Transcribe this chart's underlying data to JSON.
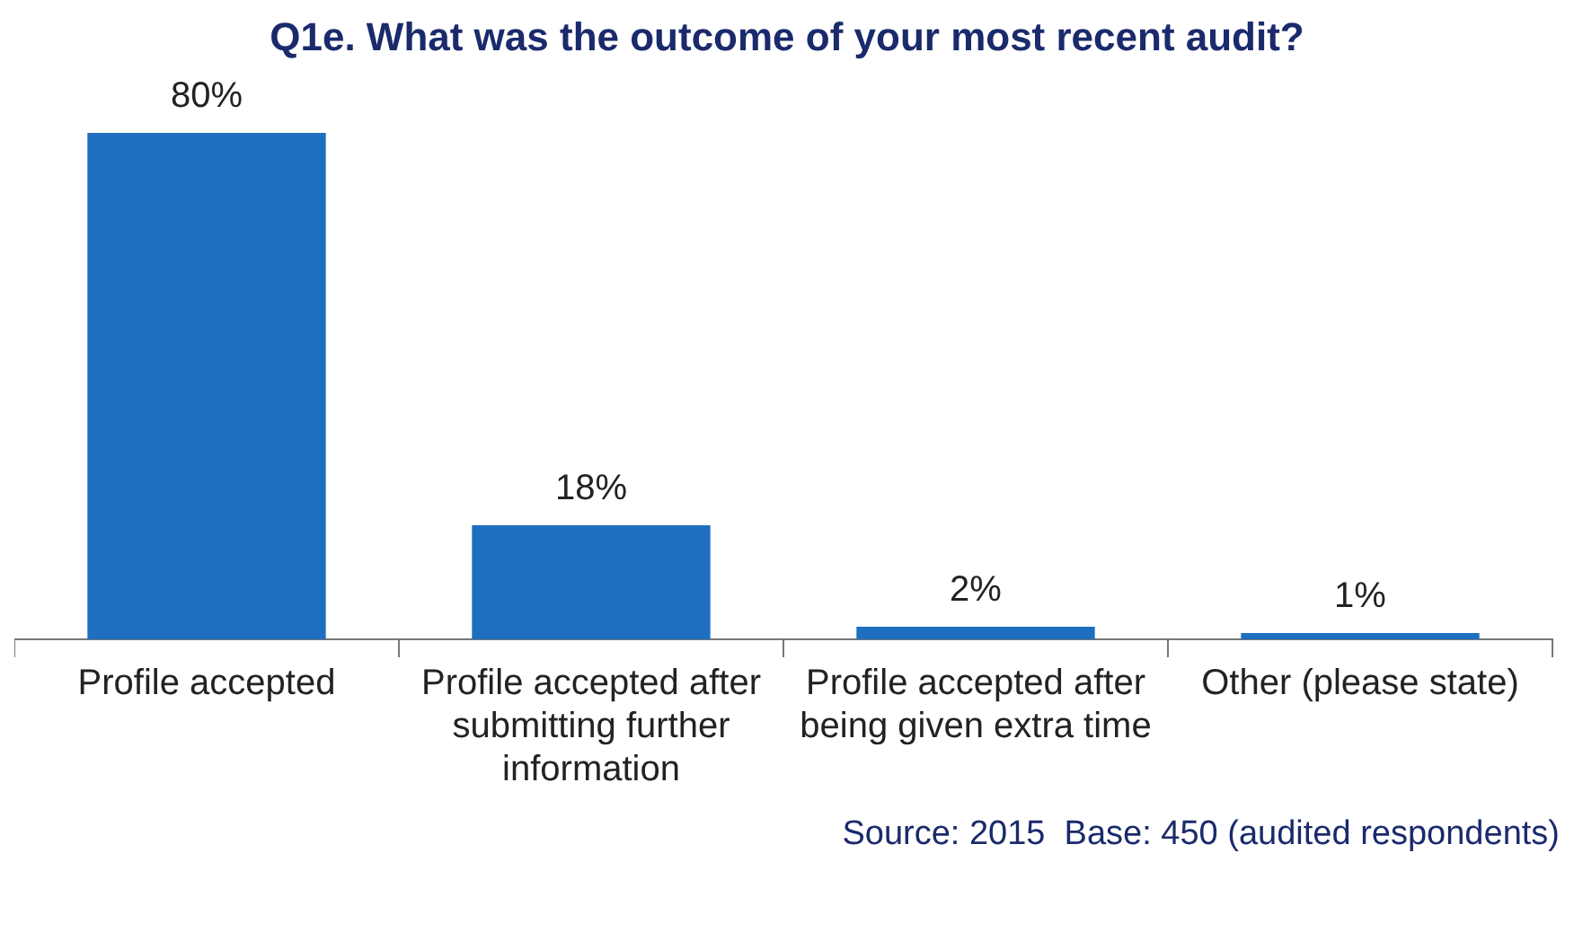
{
  "chart_data": {
    "type": "bar",
    "title": "Q1e.  What was the outcome of your most recent audit?",
    "categories": [
      "Profile accepted",
      "Profile accepted after submitting further information",
      "Profile accepted after being given extra time",
      "Other (please state)"
    ],
    "values": [
      80,
      18,
      2,
      1
    ],
    "color": "#1f6fc0",
    "value_labels": [
      "80%",
      "18%",
      "2%",
      "1%"
    ],
    "grid": false,
    "legend": false,
    "annotations": [
      "Source: 2015  Base: 450 (audited respondents)"
    ]
  }
}
